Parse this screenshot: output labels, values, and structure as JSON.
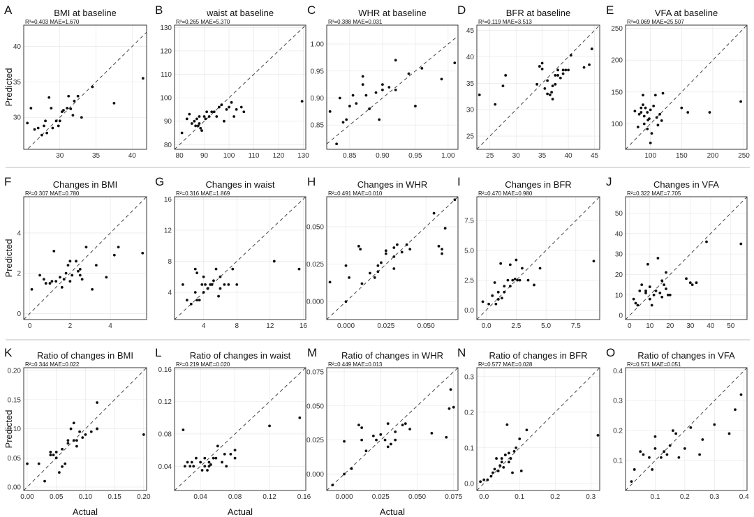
{
  "figure": {
    "y_axis_title": "Predicted",
    "x_axis_title": "Actual"
  },
  "chart_data": [
    {
      "type": "scatter",
      "label": "A",
      "title": "BMI at baseline",
      "stats": "R²=0.403    MAE=1.670",
      "xlim": [
        25,
        42
      ],
      "ylim": [
        25.5,
        43
      ],
      "xticks": [
        30,
        35,
        40
      ],
      "yticks": [
        30,
        35,
        40
      ],
      "x": [
        25.5,
        26,
        26.5,
        27,
        27.5,
        27.8,
        28,
        28.5,
        28.8,
        29,
        29.5,
        30,
        30.3,
        30.5,
        31,
        31.2,
        31.5,
        32,
        32.5,
        33,
        34.5,
        37.5,
        41.5,
        29.8,
        28.2,
        31.8
      ],
      "y": [
        29.2,
        31.3,
        28.3,
        28.5,
        27.5,
        28.8,
        29.5,
        32.8,
        31.3,
        28.5,
        29.5,
        29.5,
        30.8,
        31,
        31.3,
        33,
        31.2,
        32.3,
        33,
        30,
        34.3,
        32,
        35.5,
        28.8,
        27.8,
        30.3
      ]
    },
    {
      "type": "scatter",
      "label": "B",
      "title": "waist at baseline",
      "stats": "R²=0.265    MAE=5.370",
      "xlim": [
        78,
        131
      ],
      "ylim": [
        78,
        131
      ],
      "xticks": [
        80,
        90,
        100,
        110,
        120,
        130
      ],
      "yticks": [
        80,
        90,
        100,
        110,
        120,
        130
      ],
      "x": [
        81,
        83,
        84,
        85,
        86,
        86.5,
        87,
        88,
        88.5,
        89,
        90,
        91,
        92,
        93,
        94,
        95,
        96,
        97,
        98,
        99,
        100,
        101,
        102,
        103,
        105,
        106,
        129.5,
        88,
        87.5,
        90.5
      ],
      "y": [
        85,
        91,
        93,
        89,
        90,
        88,
        91,
        92,
        87,
        86,
        92,
        94,
        92,
        94,
        94,
        92,
        96,
        97,
        90,
        95,
        96,
        98,
        92,
        95,
        96,
        94,
        98.5,
        89,
        88,
        91
      ]
    },
    {
      "type": "scatter",
      "label": "C",
      "title": "WHR at baseline",
      "stats": "R²=0.388    MAE=0.031",
      "xlim": [
        0.815,
        1.015
      ],
      "ylim": [
        0.805,
        1.035
      ],
      "xticks": [
        0.85,
        0.9,
        0.95,
        1.0
      ],
      "yticks": [
        0.85,
        0.9,
        0.95,
        1.0
      ],
      "x": [
        0.82,
        0.83,
        0.835,
        0.84,
        0.845,
        0.85,
        0.855,
        0.86,
        0.87,
        0.87,
        0.875,
        0.88,
        0.89,
        0.895,
        0.9,
        0.9,
        0.91,
        0.92,
        0.92,
        0.94,
        0.95,
        0.96,
        0.99,
        1.01
      ],
      "y": [
        0.875,
        0.815,
        0.9,
        0.855,
        0.86,
        0.885,
        0.905,
        0.89,
        0.925,
        0.94,
        0.905,
        0.88,
        0.91,
        0.86,
        0.925,
        0.915,
        0.92,
        0.915,
        0.97,
        0.945,
        0.885,
        0.955,
        0.935,
        0.965
      ]
    },
    {
      "type": "scatter",
      "label": "D",
      "title": "BFR at baseline",
      "stats": "R²=0.119    MAE=3.513",
      "xlim": [
        22.5,
        46
      ],
      "ylim": [
        22.5,
        46
      ],
      "xticks": [
        25,
        30,
        35,
        40,
        45
      ],
      "yticks": [
        25,
        30,
        35,
        40,
        45
      ],
      "x": [
        23,
        26,
        27.5,
        28,
        34,
        34.5,
        35,
        35,
        35.5,
        36,
        36,
        36.5,
        37,
        37,
        37.5,
        37.5,
        38,
        38,
        38.5,
        39,
        39,
        39.5,
        40,
        40.5,
        43,
        44,
        44.5,
        36.8
      ],
      "y": [
        32.8,
        31,
        34.5,
        36.5,
        34.8,
        38.2,
        38.8,
        37.7,
        34,
        33,
        35.5,
        32.8,
        34.5,
        32,
        36.5,
        34.8,
        37.5,
        36.5,
        36,
        37.5,
        36.8,
        37.5,
        37.5,
        40.3,
        38,
        38.5,
        41.5,
        33.3
      ],
      "note": "point at D x=44.5 drawn at edge"
    },
    {
      "type": "scatter",
      "label": "E",
      "title": "VFA at baseline",
      "stats": "R²=0.069    MAE=25.507",
      "xlim": [
        60,
        255
      ],
      "ylim": [
        60,
        255
      ],
      "xticks": [
        100,
        150,
        200,
        250
      ],
      "yticks": [
        100,
        150,
        200,
        250
      ],
      "x": [
        75,
        80,
        82,
        85,
        85,
        88,
        90,
        90,
        92,
        95,
        95,
        98,
        100,
        100,
        102,
        105,
        108,
        110,
        112,
        115,
        118,
        120,
        150,
        160,
        195,
        245,
        88,
        96
      ],
      "y": [
        120,
        95,
        115,
        118,
        125,
        145,
        100,
        112,
        125,
        92,
        118,
        108,
        70,
        122,
        85,
        128,
        145,
        110,
        98,
        115,
        105,
        148,
        125,
        118,
        118,
        135,
        130,
        106
      ]
    },
    {
      "type": "scatter",
      "label": "F",
      "title": "Changes in BMI",
      "stats": "R²=0.307    MAE=0.780",
      "xlim": [
        -0.3,
        5.8
      ],
      "ylim": [
        -0.3,
        5.8
      ],
      "xticks": [
        0,
        2,
        4
      ],
      "yticks": [
        0,
        2,
        4
      ],
      "x": [
        0.1,
        0.5,
        0.7,
        0.8,
        1,
        1.1,
        1.2,
        1.3,
        1.5,
        1.6,
        1.7,
        1.8,
        1.9,
        2,
        2,
        2.1,
        2.3,
        2.4,
        2.5,
        2.6,
        2.8,
        3.1,
        3.3,
        3.8,
        4.2,
        4.4,
        5.6,
        2.5
      ],
      "y": [
        1.2,
        1.9,
        1.7,
        1.5,
        1.5,
        1.6,
        3.1,
        1.6,
        1.8,
        1.3,
        1.7,
        2.0,
        2.4,
        2.6,
        1.6,
        1.9,
        2.6,
        2.1,
        2.2,
        1.7,
        3.3,
        1.2,
        2.4,
        1.8,
        2.9,
        3.3,
        3.0,
        1.9
      ]
    },
    {
      "type": "scatter",
      "label": "G",
      "title": "Changes in waist",
      "stats": "R²=0.316    MAE=1.869",
      "xlim": [
        0.5,
        16.3
      ],
      "ylim": [
        0.5,
        16.3
      ],
      "xticks": [
        4,
        8,
        12,
        16
      ],
      "yticks": [
        4,
        8,
        12,
        16
      ],
      "x": [
        1.5,
        2,
        2.5,
        3,
        3,
        3.2,
        3.5,
        3.8,
        4,
        4,
        4.2,
        4.5,
        4.5,
        4.8,
        5,
        5.2,
        5.5,
        5.8,
        6,
        6,
        6.5,
        7,
        7.5,
        8,
        12.5,
        15.5,
        3.2,
        5
      ],
      "y": [
        5,
        3,
        2.5,
        4,
        7,
        3,
        3,
        5,
        6,
        4,
        5,
        4.5,
        4.5,
        5,
        5,
        5.5,
        7,
        3.5,
        6,
        4.5,
        5,
        5,
        7,
        5,
        8,
        7,
        6.5,
        5
      ]
    },
    {
      "type": "scatter",
      "label": "H",
      "title": "Changes in WHR",
      "stats": "R²=0.491    MAE=0.010",
      "xlim": [
        -0.012,
        0.07
      ],
      "ylim": [
        -0.012,
        0.07
      ],
      "xticks": [
        0.0,
        0.025,
        0.05
      ],
      "yticks": [
        0.0,
        0.025,
        0.05
      ],
      "x": [
        -0.01,
        0.0,
        0.0,
        0.002,
        0.008,
        0.009,
        0.01,
        0.015,
        0.018,
        0.02,
        0.02,
        0.022,
        0.025,
        0.025,
        0.03,
        0.03,
        0.03,
        0.032,
        0.035,
        0.038,
        0.04,
        0.055,
        0.058,
        0.06,
        0.06,
        0.062,
        0.068
      ],
      "y": [
        0.013,
        0.0,
        0.024,
        0.016,
        0.037,
        0.035,
        0.012,
        0.019,
        0.016,
        0.024,
        0.02,
        0.026,
        0.032,
        0.034,
        0.03,
        0.036,
        0.022,
        0.038,
        0.033,
        0.038,
        0.035,
        0.059,
        0.037,
        0.035,
        0.032,
        0.049,
        0.068
      ]
    },
    {
      "type": "scatter",
      "label": "I",
      "title": "Changes in BFR",
      "stats": "R²=0.470    MAE=0.980",
      "xlim": [
        -0.8,
        9.5
      ],
      "ylim": [
        -0.8,
        9.5
      ],
      "xticks": [
        0.0,
        2.5,
        5.0,
        7.5
      ],
      "yticks": [
        0.0,
        2.5,
        5.0,
        7.5
      ],
      "x": [
        -0.3,
        0.2,
        0.5,
        0.7,
        0.8,
        1,
        1,
        1.2,
        1.5,
        1.5,
        1.8,
        2,
        2,
        2.2,
        2.4,
        2.5,
        2.6,
        3,
        3.5,
        4,
        4.5,
        9,
        1.3,
        2.8
      ],
      "y": [
        0.7,
        0.5,
        1.2,
        2.3,
        0.5,
        1.5,
        0.9,
        3.9,
        1.5,
        2,
        2.5,
        3.8,
        2,
        2.5,
        2.6,
        4.2,
        2.5,
        3.5,
        2.5,
        2.1,
        3.5,
        4.1,
        1,
        2.5
      ]
    },
    {
      "type": "scatter",
      "label": "J",
      "title": "Changes in VFA",
      "stats": "R²=0.322    MAE=7.705",
      "xlim": [
        -2,
        58
      ],
      "ylim": [
        -2,
        58
      ],
      "xticks": [
        0,
        10,
        20,
        30,
        40,
        50
      ],
      "yticks": [
        0,
        10,
        20,
        30,
        40,
        50
      ],
      "x": [
        2,
        3,
        4,
        5,
        6,
        8,
        8,
        9,
        10,
        10,
        11,
        12,
        13,
        14,
        15,
        16,
        16,
        17,
        18,
        18,
        19,
        20,
        28,
        30,
        31,
        33,
        38,
        55
      ],
      "y": [
        8,
        6,
        5,
        12,
        15,
        11,
        12,
        25,
        14,
        8,
        5,
        10,
        12,
        28,
        11,
        9,
        17,
        15,
        13,
        21,
        10,
        10,
        18,
        16,
        15,
        16,
        36,
        35
      ]
    },
    {
      "type": "scatter",
      "label": "K",
      "title": "Ratio of changes in BMI",
      "stats": "R²=0.344    MAE=0.022",
      "xlim": [
        -0.006,
        0.205
      ],
      "ylim": [
        -0.006,
        0.205
      ],
      "xticks": [
        0.0,
        0.05,
        0.1,
        0.15,
        0.2
      ],
      "yticks": [
        0.0,
        0.05,
        0.1,
        0.15,
        0.2
      ],
      "x": [
        0.0,
        0.02,
        0.03,
        0.04,
        0.04,
        0.05,
        0.05,
        0.055,
        0.06,
        0.06,
        0.065,
        0.07,
        0.07,
        0.075,
        0.08,
        0.08,
        0.085,
        0.09,
        0.095,
        0.1,
        0.11,
        0.12,
        0.12,
        0.12,
        0.2,
        0.045,
        0.085
      ],
      "y": [
        0.04,
        0.04,
        0.01,
        0.06,
        0.055,
        0.06,
        0.05,
        0.025,
        0.065,
        0.035,
        0.04,
        0.075,
        0.08,
        0.1,
        0.08,
        0.11,
        0.07,
        0.095,
        0.085,
        0.09,
        0.095,
        0.145,
        0.1,
        0.1,
        0.09,
        0.055,
        0.08
      ]
    },
    {
      "type": "scatter",
      "label": "L",
      "title": "Ratio of changes in waist",
      "stats": "R²=0.219    MAE=0.020",
      "xlim": [
        0.01,
        0.162
      ],
      "ylim": [
        0.01,
        0.162
      ],
      "xticks": [
        0.04,
        0.08,
        0.12,
        0.16
      ],
      "yticks": [
        0.04,
        0.08,
        0.12,
        0.16
      ],
      "x": [
        0.02,
        0.022,
        0.025,
        0.028,
        0.03,
        0.032,
        0.035,
        0.04,
        0.042,
        0.045,
        0.048,
        0.05,
        0.05,
        0.055,
        0.058,
        0.06,
        0.065,
        0.068,
        0.07,
        0.075,
        0.08,
        0.08,
        0.12,
        0.155,
        0.045,
        0.052
      ],
      "y": [
        0.085,
        0.04,
        0.045,
        0.04,
        0.045,
        0.04,
        0.05,
        0.045,
        0.035,
        0.05,
        0.035,
        0.045,
        0.04,
        0.05,
        0.05,
        0.065,
        0.045,
        0.055,
        0.04,
        0.055,
        0.05,
        0.06,
        0.09,
        0.1,
        0.04,
        0.042
      ]
    },
    {
      "type": "scatter",
      "label": "M",
      "title": "Ratio of changes in WHR",
      "stats": "R²=0.449    MAE=0.013",
      "xlim": [
        -0.012,
        0.078
      ],
      "ylim": [
        -0.012,
        0.078
      ],
      "xticks": [
        0.0,
        0.025,
        0.05,
        0.075
      ],
      "yticks": [
        0.0,
        0.025,
        0.05,
        0.075
      ],
      "x": [
        -0.008,
        0.0,
        0.0,
        0.005,
        0.01,
        0.012,
        0.012,
        0.015,
        0.02,
        0.022,
        0.025,
        0.028,
        0.03,
        0.032,
        0.035,
        0.035,
        0.04,
        0.045,
        0.06,
        0.07,
        0.072,
        0.073,
        0.075,
        0.042,
        0.03
      ],
      "y": [
        -0.008,
        0.0,
        0.024,
        0.004,
        0.036,
        0.025,
        0.034,
        0.017,
        0.028,
        0.025,
        0.029,
        0.025,
        0.037,
        0.022,
        0.025,
        0.031,
        0.036,
        0.033,
        0.03,
        0.027,
        0.048,
        0.062,
        0.049,
        0.037,
        0.02
      ]
    },
    {
      "type": "scatter",
      "label": "N",
      "title": "Ratio of changes in BFR",
      "stats": "R²=0.577    MAE=0.028",
      "xlim": [
        -0.02,
        0.325
      ],
      "ylim": [
        -0.02,
        0.325
      ],
      "xticks": [
        0.0,
        0.1,
        0.2,
        0.3
      ],
      "yticks": [
        0.0,
        0.1,
        0.2,
        0.3
      ],
      "x": [
        -0.01,
        0.0,
        0.01,
        0.02,
        0.025,
        0.03,
        0.035,
        0.04,
        0.045,
        0.05,
        0.05,
        0.055,
        0.06,
        0.065,
        0.07,
        0.07,
        0.075,
        0.08,
        0.085,
        0.09,
        0.1,
        0.105,
        0.12,
        0.32,
        0.04,
        0.06
      ],
      "y": [
        0.005,
        0.01,
        0.01,
        0.02,
        0.03,
        0.04,
        0.07,
        0.035,
        0.05,
        0.06,
        0.07,
        0.045,
        0.08,
        0.165,
        0.06,
        0.085,
        0.07,
        0.03,
        0.09,
        0.1,
        0.125,
        0.035,
        0.15,
        0.135,
        0.035,
        0.08
      ]
    },
    {
      "type": "scatter",
      "label": "O",
      "title": "Ratio of changes in VFA",
      "stats": "R²=0.571    MAE=0.051",
      "xlim": [
        0.0,
        0.41
      ],
      "ylim": [
        0.0,
        0.41
      ],
      "xticks": [
        0.1,
        0.2,
        0.3,
        0.4
      ],
      "yticks": [
        0.1,
        0.2,
        0.3,
        0.4
      ],
      "x": [
        0.02,
        0.03,
        0.05,
        0.06,
        0.08,
        0.09,
        0.1,
        0.1,
        0.12,
        0.13,
        0.15,
        0.16,
        0.17,
        0.18,
        0.2,
        0.25,
        0.26,
        0.3,
        0.35,
        0.37,
        0.39,
        0.14,
        0.22
      ],
      "y": [
        0.03,
        0.07,
        0.13,
        0.12,
        0.11,
        0.07,
        0.14,
        0.18,
        0.11,
        0.13,
        0.15,
        0.2,
        0.19,
        0.11,
        0.14,
        0.12,
        0.17,
        0.22,
        0.19,
        0.27,
        0.32,
        0.12,
        0.21
      ]
    }
  ]
}
